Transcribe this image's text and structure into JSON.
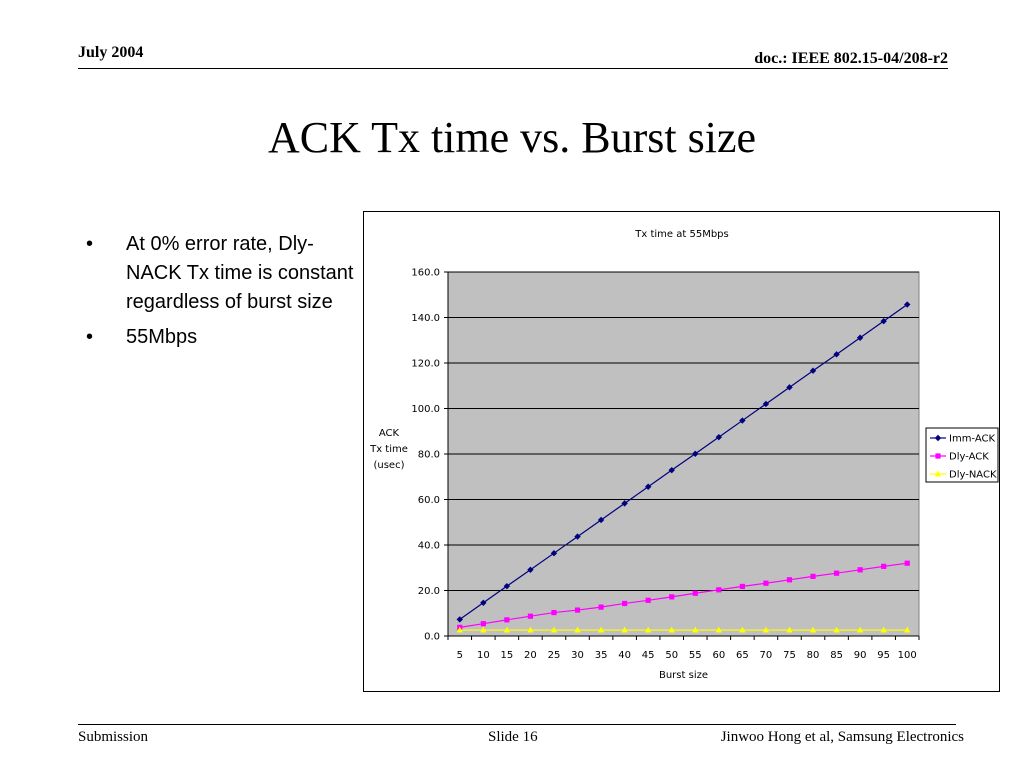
{
  "header": {
    "date": "July 2004",
    "doc_id": "doc.: IEEE 802.15-04/208-r2"
  },
  "slide_title": "ACK Tx time vs. Burst size",
  "bullets": [
    "At 0% error rate, Dly-NACK Tx time is constant regardless of burst size",
    "55Mbps"
  ],
  "footer": {
    "left": "Submission",
    "center": "Slide 16",
    "right": "Jinwoo Hong et al, Samsung Electronics"
  },
  "chart_data": {
    "type": "line",
    "title": "Tx time at 55Mbps",
    "xlabel": "Burst size",
    "ylabel": [
      "ACK",
      "Tx time",
      "(usec)"
    ],
    "categories": [
      "5",
      "10",
      "15",
      "20",
      "25",
      "30",
      "35",
      "40",
      "45",
      "50",
      "55",
      "60",
      "65",
      "70",
      "75",
      "80",
      "85",
      "90",
      "95",
      "100"
    ],
    "ylim": [
      0,
      160
    ],
    "yticks": [
      "0.0",
      "20.0",
      "40.0",
      "60.0",
      "80.0",
      "100.0",
      "120.0",
      "140.0",
      "160.0"
    ],
    "grid": true,
    "legend_position": "right",
    "plot_background": "#c0c0c0",
    "series": [
      {
        "name": "Imm-ACK",
        "color": "#000080",
        "marker": "diamond",
        "values": [
          7.3,
          14.6,
          21.9,
          29.1,
          36.4,
          43.7,
          51.0,
          58.3,
          65.6,
          72.9,
          80.1,
          87.4,
          94.7,
          102.0,
          109.3,
          116.6,
          123.8,
          131.1,
          138.4,
          145.7
        ]
      },
      {
        "name": "Dly-ACK",
        "color": "#ff00ff",
        "marker": "square",
        "values": [
          3.8,
          5.4,
          7.1,
          8.7,
          10.3,
          11.4,
          12.7,
          14.3,
          15.7,
          17.2,
          18.8,
          20.3,
          21.8,
          23.2,
          24.7,
          26.2,
          27.6,
          29.1,
          30.6,
          32.0
        ]
      },
      {
        "name": "Dly-NACK",
        "color": "#ffff00",
        "marker": "triangle",
        "values": [
          2.6,
          2.6,
          2.6,
          2.6,
          2.6,
          2.6,
          2.6,
          2.6,
          2.6,
          2.6,
          2.6,
          2.6,
          2.6,
          2.6,
          2.6,
          2.6,
          2.6,
          2.6,
          2.6,
          2.6
        ]
      }
    ]
  }
}
